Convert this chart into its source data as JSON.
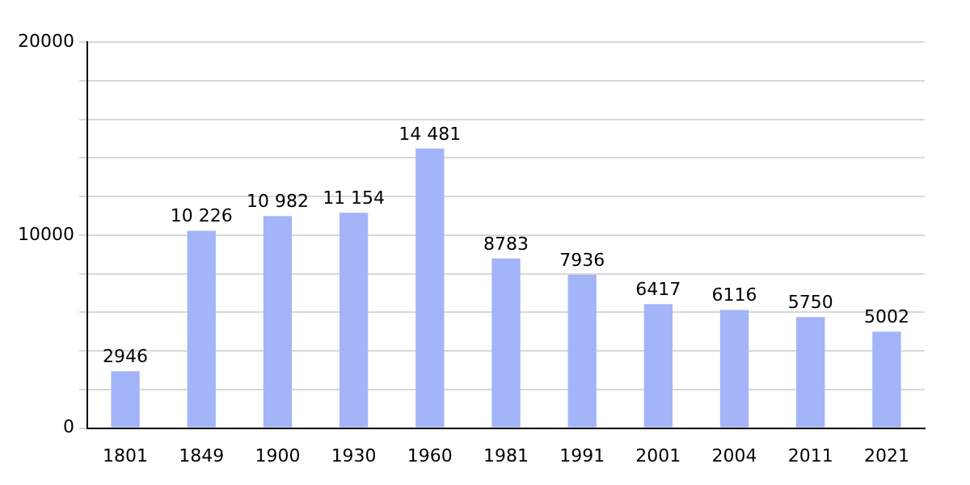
{
  "chart_data": {
    "type": "bar",
    "categories": [
      "1801",
      "1849",
      "1900",
      "1930",
      "1960",
      "1981",
      "1991",
      "2001",
      "2004",
      "2011",
      "2021"
    ],
    "values": [
      2946,
      10226,
      10982,
      11154,
      14481,
      8783,
      7936,
      6417,
      6116,
      5750,
      5002
    ],
    "value_labels": [
      "2946",
      "10 226",
      "10 982",
      "11 154",
      "14 481",
      "8783",
      "7936",
      "6417",
      "6116",
      "5750",
      "5002"
    ],
    "color": "#a4b4f9",
    "ylim": [
      0,
      20000
    ],
    "yticks": [
      0,
      {
        "value": 2000,
        "label": null
      },
      {
        "value": 4000,
        "label": null
      },
      {
        "value": 6000,
        "label": null
      },
      {
        "value": 8000,
        "label": null
      },
      10000,
      {
        "value": 12000,
        "label": null
      },
      {
        "value": 14000,
        "label": null
      },
      {
        "value": 16000,
        "label": null
      },
      {
        "value": 18000,
        "label": null
      },
      20000
    ],
    "grid": "y",
    "legend": false
  }
}
